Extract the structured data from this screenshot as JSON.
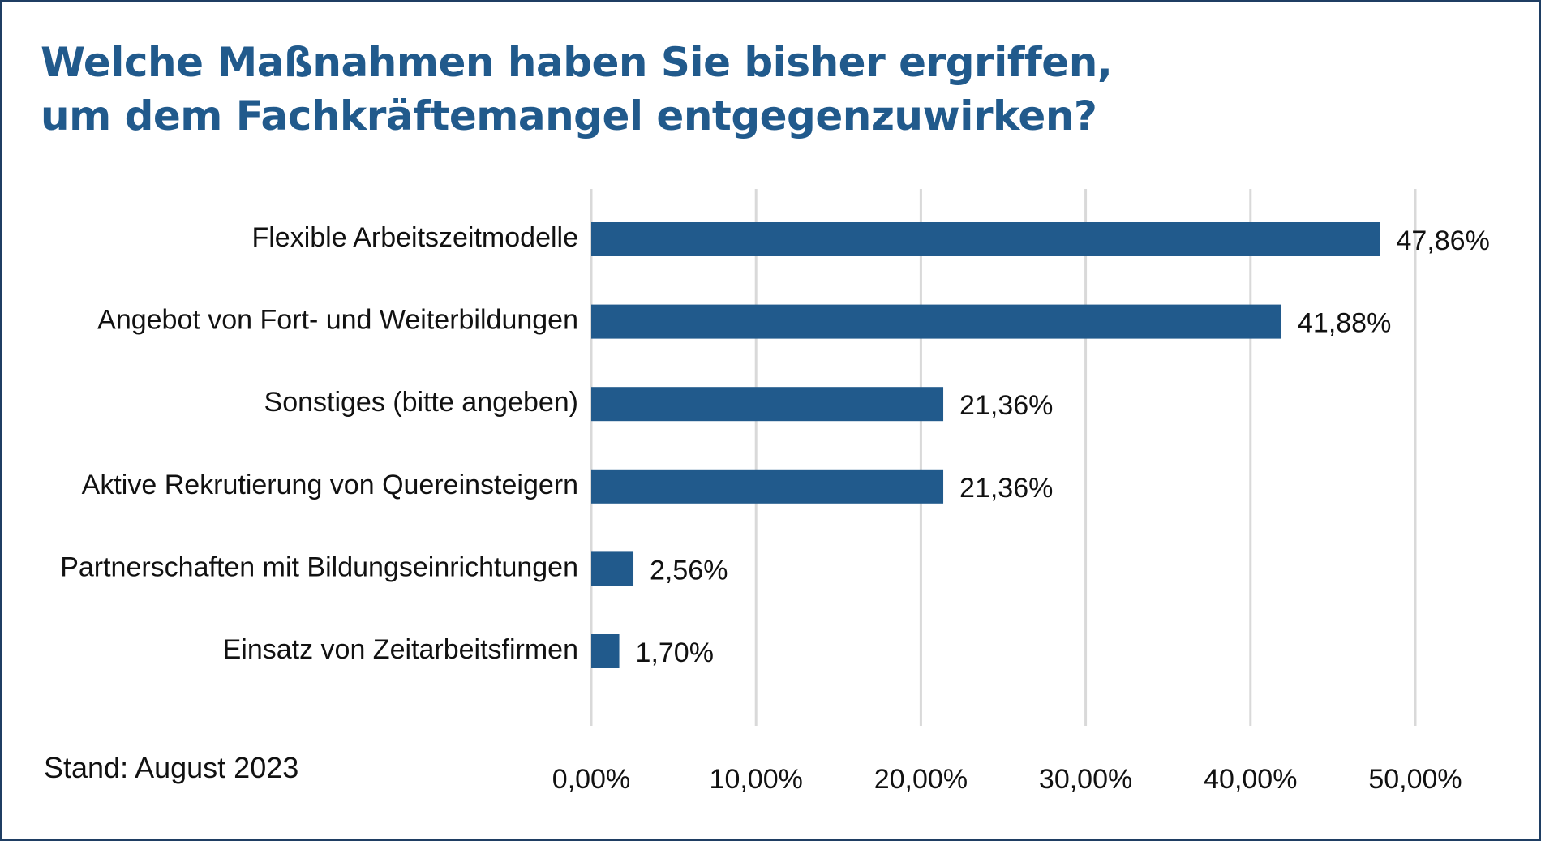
{
  "title_lines": [
    "Welche Maßnahmen haben Sie bisher ergriffen,",
    "um dem Fachkräftemangel entgegenzuwirken?"
  ],
  "footnote": "Stand: August 2023",
  "colors": {
    "bar": "#215a8c",
    "title": "#215a8c",
    "grid": "#d9d9d9",
    "frame": "#1f3e63"
  },
  "chart_data": {
    "type": "bar",
    "orientation": "horizontal",
    "categories": [
      "Flexible Arbeitszeitmodelle",
      "Angebot von Fort- und Weiterbildungen",
      "Sonstiges (bitte angeben)",
      "Aktive Rekrutierung von Quereinsteigern",
      "Partnerschaften mit Bildungseinrichtungen",
      "Einsatz von Zeitarbeitsfirmen"
    ],
    "values": [
      47.86,
      41.88,
      21.36,
      21.36,
      2.56,
      1.7
    ],
    "value_labels": [
      "47,86%",
      "41,88%",
      "21,36%",
      "21,36%",
      "2,56%",
      "1,70%"
    ],
    "xlim": [
      0,
      50
    ],
    "xticks": [
      0,
      10,
      20,
      30,
      40,
      50
    ],
    "xtick_labels": [
      "0,00%",
      "10,00%",
      "20,00%",
      "30,00%",
      "40,00%",
      "50,00%"
    ],
    "grid": true,
    "legend": "none"
  }
}
